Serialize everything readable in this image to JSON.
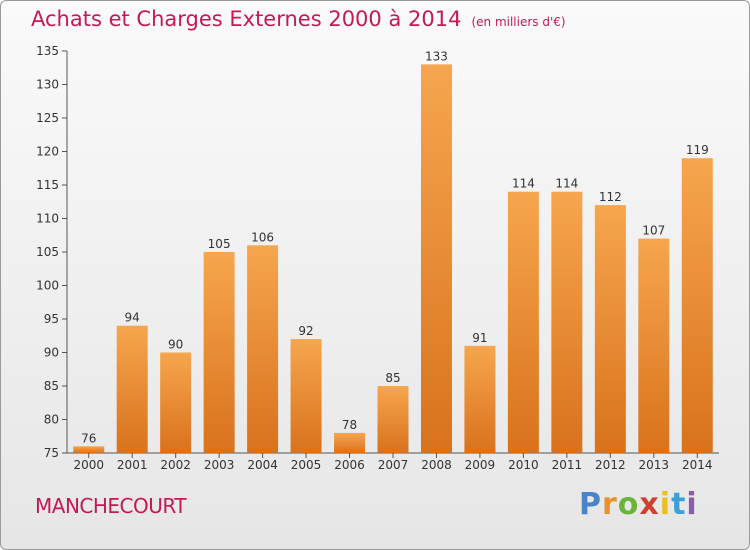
{
  "header": {
    "title": "Achats et Charges Externes 2000 à 2014",
    "subtitle": "(en milliers d'€)"
  },
  "footer": {
    "commune": "MANCHECOURT",
    "brand_letters": [
      "P",
      "r",
      "o",
      "x",
      "i",
      "t",
      "i"
    ]
  },
  "colors": {
    "title": "#c41a53",
    "bar_light": "#f6a64e",
    "bar_dark": "#d9721c"
  },
  "chart_data": {
    "type": "bar",
    "title": "Achats et Charges Externes 2000 à 2014",
    "subtitle": "(en milliers d'€)",
    "xlabel": "",
    "ylabel": "",
    "categories": [
      "2000",
      "2001",
      "2002",
      "2003",
      "2004",
      "2005",
      "2006",
      "2007",
      "2008",
      "2009",
      "2010",
      "2011",
      "2012",
      "2013",
      "2014"
    ],
    "values": [
      76,
      94,
      90,
      105,
      106,
      92,
      78,
      85,
      133,
      91,
      114,
      114,
      112,
      107,
      119
    ],
    "ylim": [
      75,
      135
    ],
    "yticks": [
      75,
      80,
      85,
      90,
      95,
      100,
      105,
      110,
      115,
      120,
      125,
      130,
      135
    ],
    "grid": false,
    "legend": "none"
  }
}
